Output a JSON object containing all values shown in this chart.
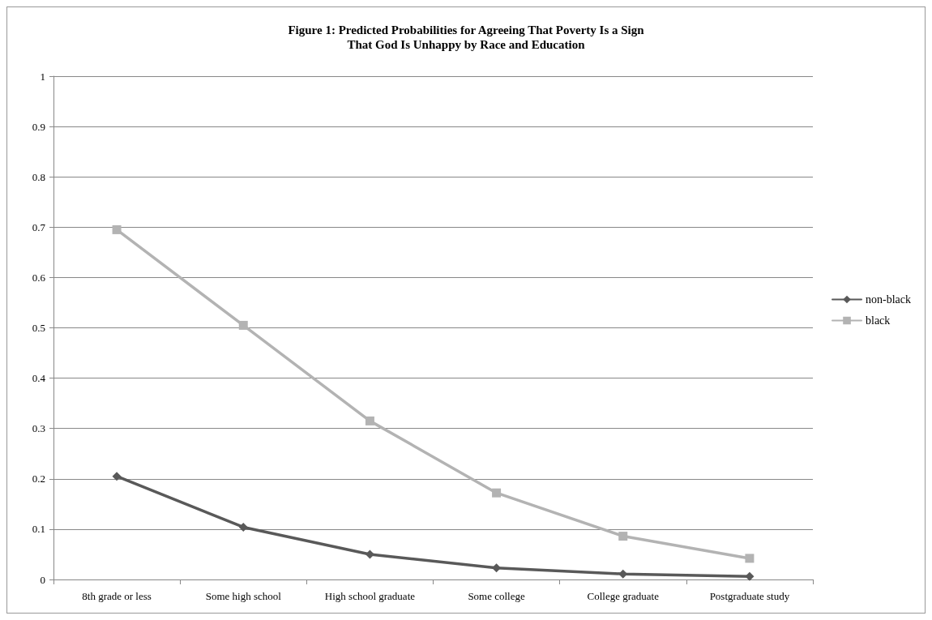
{
  "chart_data": {
    "type": "line",
    "title": "Figure 1: Predicted Probabilities for Agreeing That Poverty Is a Sign\nThat God Is Unhappy by Race and Education",
    "categories": [
      "8th grade or less",
      "Some high school",
      "High school graduate",
      "Some college",
      "College graduate",
      "Postgraduate study"
    ],
    "series": [
      {
        "name": "non-black",
        "color": "#595959",
        "marker": "diamond",
        "values": [
          0.205,
          0.104,
          0.05,
          0.023,
          0.011,
          0.006
        ]
      },
      {
        "name": "black",
        "color": "#b3b3b3",
        "marker": "square",
        "values": [
          0.695,
          0.505,
          0.315,
          0.172,
          0.086,
          0.042
        ]
      }
    ],
    "ylim": [
      0,
      1
    ],
    "yticks": [
      0,
      0.1,
      0.2,
      0.3,
      0.4,
      0.5,
      0.6,
      0.7,
      0.8,
      0.9,
      1
    ],
    "grid": "y",
    "legend": "right",
    "line_style": "solid"
  }
}
